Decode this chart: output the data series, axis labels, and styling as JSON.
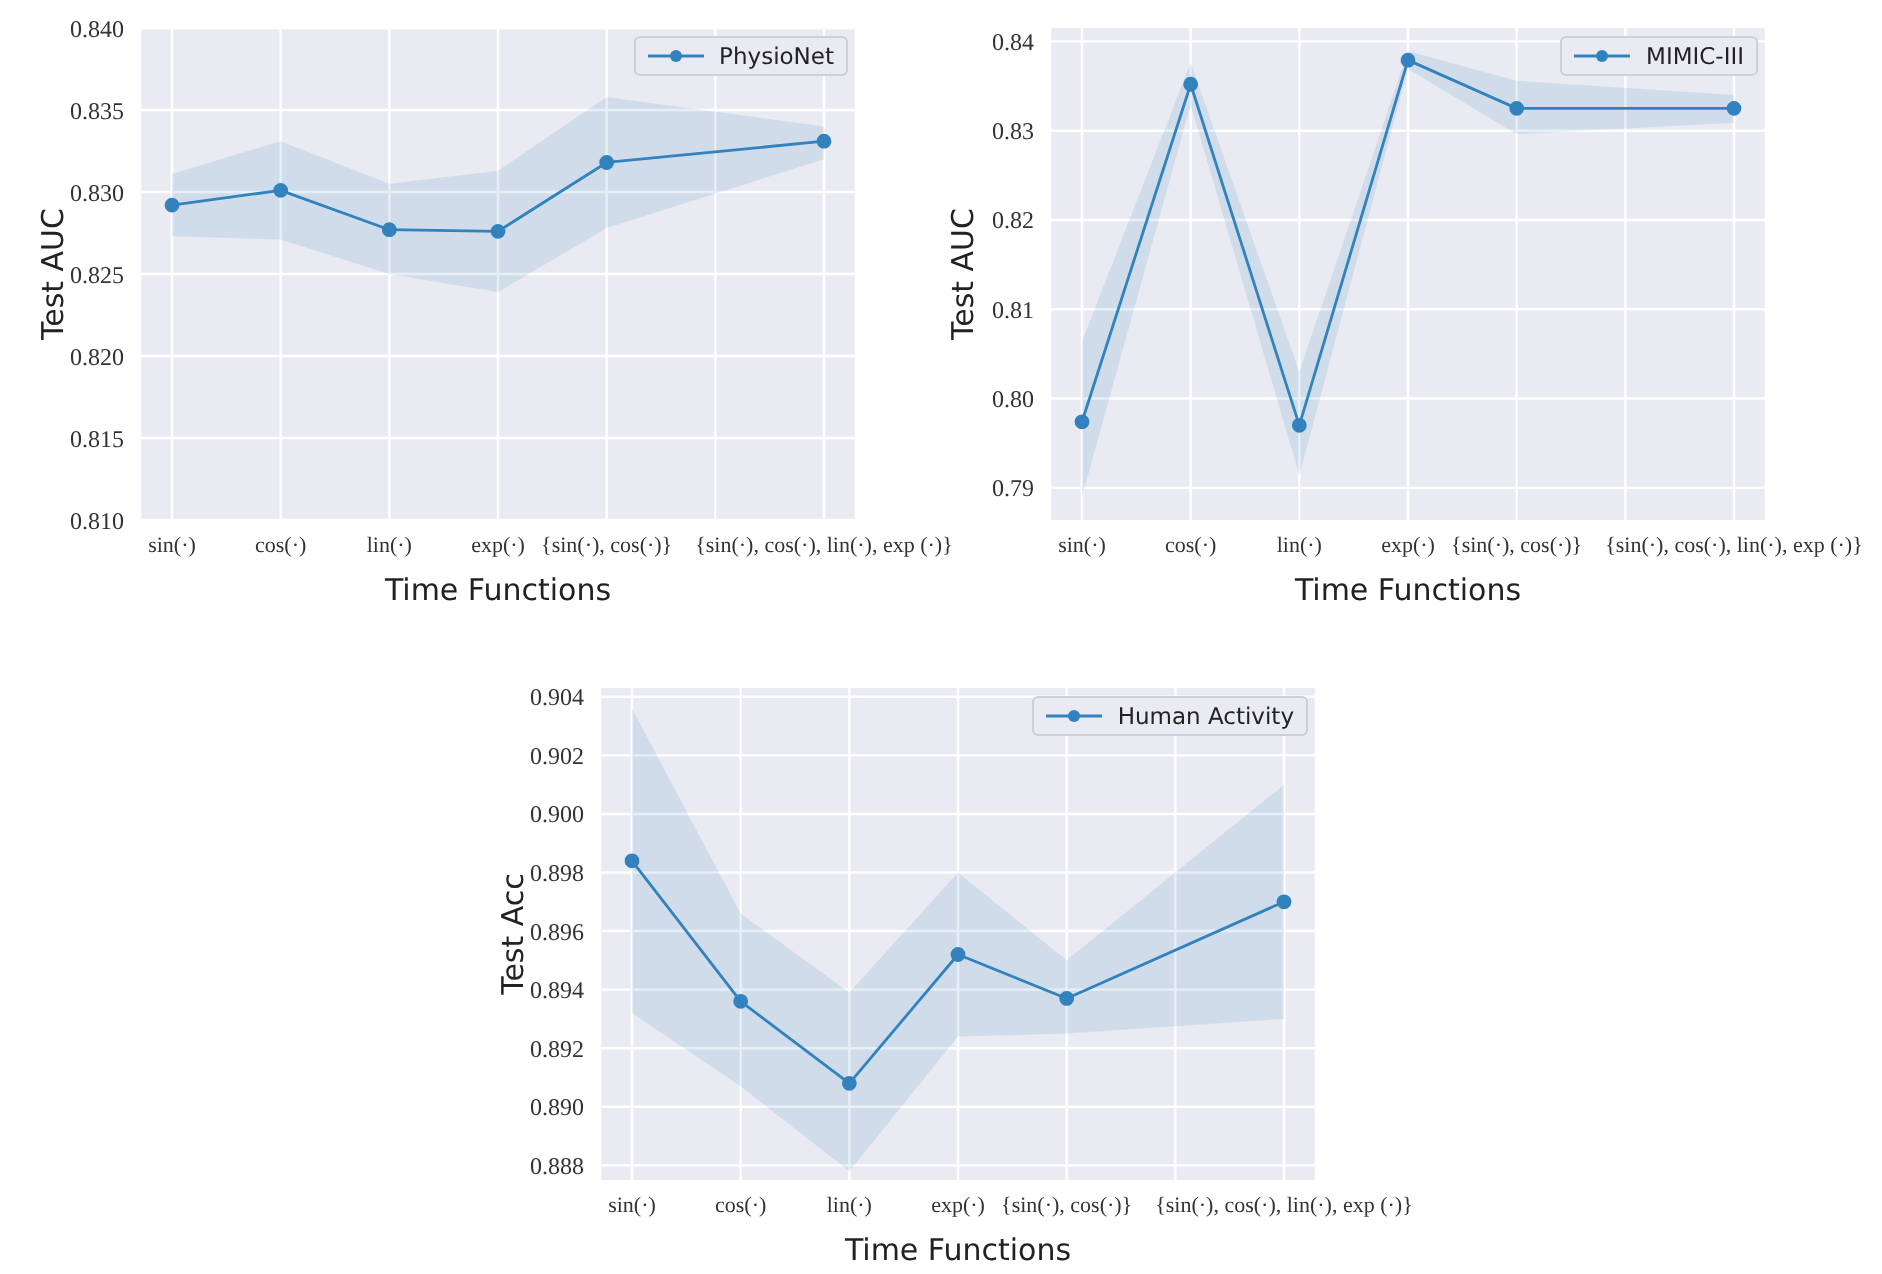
{
  "chart_data": [
    {
      "type": "line",
      "xlabel": "Time Functions",
      "ylabel": "Test AUC",
      "categories": [
        "sin(·)",
        "cos(·)",
        "lin(·)",
        "exp(·)",
        "{sin(·), cos(·)}",
        null,
        "{sin(·), cos(·), lin(·), exp (·)}"
      ],
      "ylim": [
        0.81,
        0.84
      ],
      "yticks": [
        {
          "value": 0.81,
          "label": "0.810"
        },
        {
          "value": 0.815,
          "label": "0.815"
        },
        {
          "value": 0.82,
          "label": "0.820"
        },
        {
          "value": 0.825,
          "label": "0.825"
        },
        {
          "value": 0.83,
          "label": "0.830"
        },
        {
          "value": 0.835,
          "label": "0.835"
        },
        {
          "value": 0.84,
          "label": "0.840"
        }
      ],
      "series": [
        {
          "name": "PhysioNet",
          "color": "#3182bd",
          "values": [
            0.8292,
            0.8301,
            0.8277,
            0.8276,
            0.8318,
            null,
            0.8331
          ],
          "lower": [
            0.8273,
            0.8271,
            0.825,
            0.8239,
            0.8278,
            null,
            0.832
          ],
          "upper": [
            0.8311,
            0.8331,
            0.8305,
            0.8313,
            0.8358,
            null,
            0.834
          ]
        }
      ],
      "grid": true,
      "legend": "top right",
      "marker": "circle",
      "line_style": "solid"
    },
    {
      "type": "line",
      "xlabel": "Time Functions",
      "ylabel": "Test AUC",
      "categories": [
        "sin(·)",
        "cos(·)",
        "lin(·)",
        "exp(·)",
        "{sin(·), cos(·)}",
        null,
        "{sin(·), cos(·), lin(·), exp (·)}"
      ],
      "ylim": [
        0.7864,
        0.8415
      ],
      "yticks": [
        {
          "value": 0.79,
          "label": "0.79"
        },
        {
          "value": 0.8,
          "label": "0.80"
        },
        {
          "value": 0.81,
          "label": "0.81"
        },
        {
          "value": 0.82,
          "label": "0.82"
        },
        {
          "value": 0.83,
          "label": "0.83"
        },
        {
          "value": 0.84,
          "label": "0.84"
        }
      ],
      "series": [
        {
          "name": "MIMIC-III",
          "color": "#3182bd",
          "values": [
            0.7974,
            0.8352,
            0.797,
            0.8379,
            0.8325,
            null,
            0.8325
          ],
          "lower": [
            0.789,
            0.8329,
            0.7914,
            0.8369,
            0.8296,
            null,
            0.8309
          ],
          "upper": [
            0.8064,
            0.8376,
            0.803,
            0.8389,
            0.8356,
            null,
            0.834
          ]
        }
      ],
      "grid": true,
      "legend": "top right",
      "marker": "circle",
      "line_style": "solid"
    },
    {
      "type": "line",
      "xlabel": "Time Functions",
      "ylabel": "Test Acc",
      "categories": [
        "sin(·)",
        "cos(·)",
        "lin(·)",
        "exp(·)",
        "{sin(·), cos(·)}",
        null,
        "{sin(·), cos(·), lin(·), exp (·)}"
      ],
      "ylim": [
        0.8875,
        0.9043
      ],
      "yticks": [
        {
          "value": 0.888,
          "label": "0.888"
        },
        {
          "value": 0.89,
          "label": "0.890"
        },
        {
          "value": 0.892,
          "label": "0.892"
        },
        {
          "value": 0.894,
          "label": "0.894"
        },
        {
          "value": 0.896,
          "label": "0.896"
        },
        {
          "value": 0.898,
          "label": "0.898"
        },
        {
          "value": 0.9,
          "label": "0.900"
        },
        {
          "value": 0.902,
          "label": "0.902"
        },
        {
          "value": 0.904,
          "label": "0.904"
        }
      ],
      "series": [
        {
          "name": "Human Activity",
          "color": "#3182bd",
          "values": [
            0.8984,
            0.8936,
            0.8908,
            0.8952,
            0.8937,
            null,
            0.897
          ],
          "lower": [
            0.8932,
            0.8907,
            0.8878,
            0.8924,
            0.8925,
            null,
            0.893
          ],
          "upper": [
            0.9036,
            0.8966,
            0.8939,
            0.898,
            0.895,
            null,
            0.901
          ]
        }
      ],
      "grid": true,
      "legend": "top right",
      "marker": "circle",
      "line_style": "solid"
    }
  ]
}
